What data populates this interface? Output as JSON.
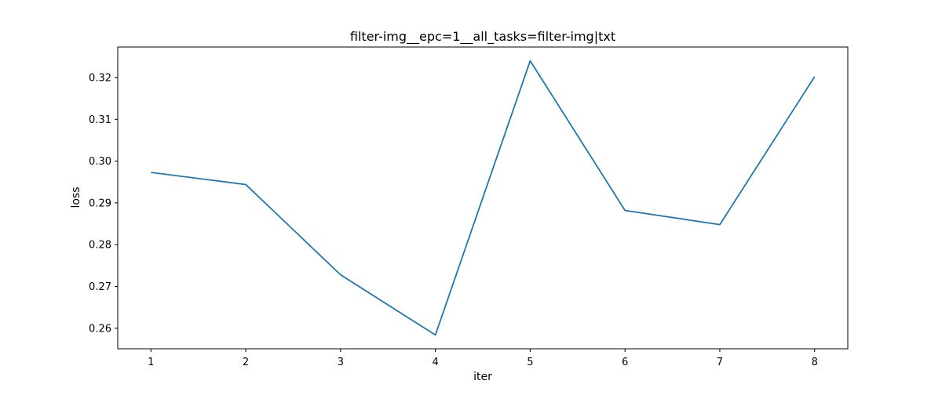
{
  "chart_data": {
    "type": "line",
    "title": "filter-img__epc=1__all_tasks=filter-img|txt",
    "xlabel": "iter",
    "ylabel": "loss",
    "x": [
      1,
      2,
      3,
      4,
      5,
      6,
      7,
      8
    ],
    "series": [
      {
        "values": [
          0.2973,
          0.2944,
          0.2728,
          0.2584,
          0.324,
          0.2882,
          0.2848,
          0.3202
        ],
        "color": "#1f77b4"
      }
    ],
    "xticks": [
      "1",
      "2",
      "3",
      "4",
      "5",
      "6",
      "7",
      "8"
    ],
    "yticks": [
      "0.26",
      "0.27",
      "0.28",
      "0.29",
      "0.30",
      "0.31",
      "0.32"
    ],
    "ytick_values": [
      0.26,
      0.27,
      0.28,
      0.29,
      0.3,
      0.31,
      0.32
    ],
    "xlim": [
      0.65,
      8.35
    ],
    "ylim": [
      0.2551,
      0.3273
    ],
    "grid": false,
    "legend": "none"
  }
}
